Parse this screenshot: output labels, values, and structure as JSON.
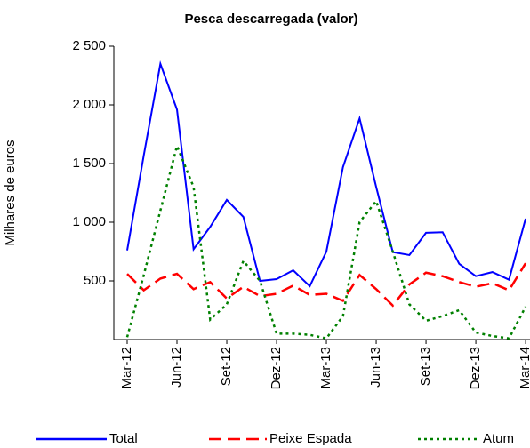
{
  "chart_data": {
    "type": "line",
    "title": "Pesca descarregada (valor)",
    "y_label": "Milhares de euros",
    "categories": [
      "Mar-12",
      null,
      null,
      "Jun-12",
      null,
      null,
      "Set-12",
      null,
      null,
      "Dez-12",
      null,
      null,
      "Mar-13",
      null,
      null,
      "Jun-13",
      null,
      null,
      "Set-13",
      null,
      null,
      "Dez-13",
      null,
      null,
      "Mar-14"
    ],
    "series": [
      {
        "name": "Total",
        "color": "#0000ff",
        "style": "solid",
        "values": [
          760,
          1570,
          2350,
          1960,
          770,
          960,
          1190,
          1045,
          500,
          515,
          590,
          455,
          750,
          1470,
          1885,
          1300,
          745,
          720,
          910,
          915,
          645,
          540,
          575,
          510,
          1030
        ]
      },
      {
        "name": "Peixe Espada",
        "color": "#ff0000",
        "style": "dashed",
        "values": [
          560,
          420,
          520,
          560,
          430,
          490,
          350,
          450,
          370,
          390,
          460,
          380,
          390,
          330,
          550,
          430,
          290,
          470,
          570,
          540,
          490,
          450,
          480,
          420,
          650
        ]
      },
      {
        "name": "Atum",
        "color": "#008000",
        "style": "dotted",
        "values": [
          20,
          550,
          1100,
          1650,
          1300,
          170,
          300,
          670,
          500,
          50,
          50,
          40,
          10,
          200,
          1000,
          1180,
          750,
          300,
          160,
          200,
          250,
          60,
          30,
          10,
          280
        ]
      }
    ],
    "ylim": [
      0,
      2500
    ],
    "yticks": [
      {
        "value": 500,
        "label": "500"
      },
      {
        "value": 1000,
        "label": "1 000"
      },
      {
        "value": 1500,
        "label": "1 500"
      },
      {
        "value": 2000,
        "label": "2 000"
      },
      {
        "value": 2500,
        "label": "2 500"
      }
    ],
    "legend": "bottom"
  }
}
